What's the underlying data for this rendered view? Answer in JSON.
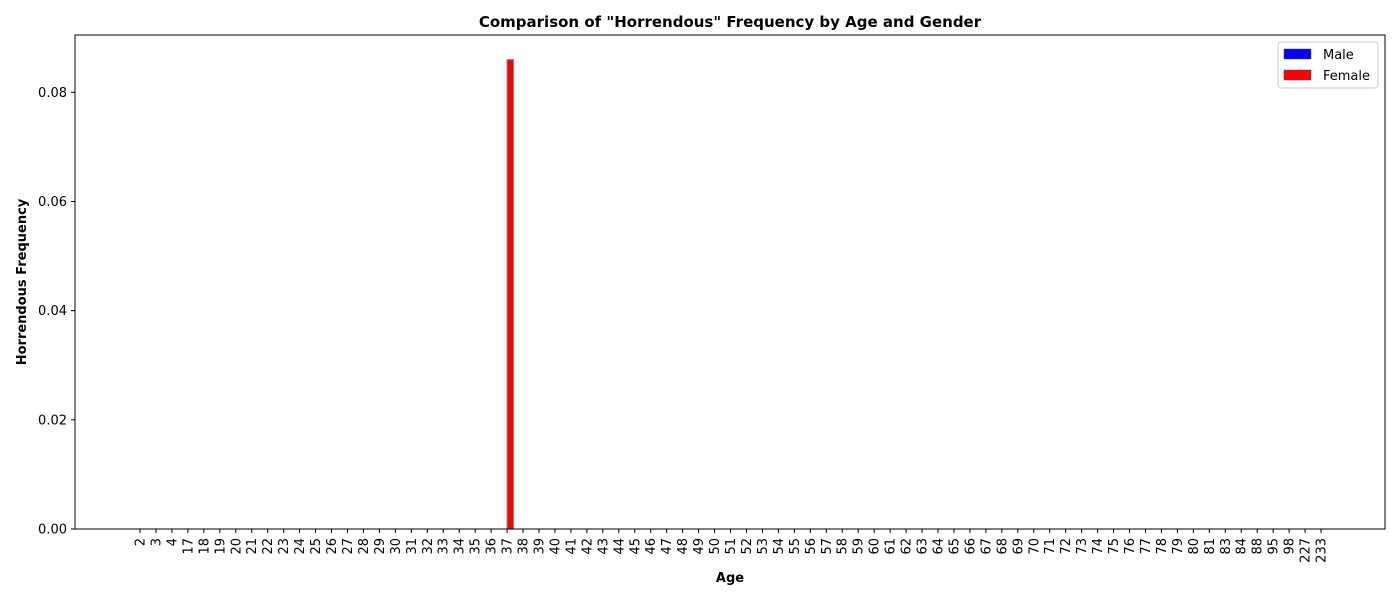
{
  "chart_data": {
    "type": "bar",
    "title": "Comparison of \"Horrendous\" Frequency by Age and Gender",
    "xlabel": "Age",
    "ylabel": "Horrendous Frequency",
    "ylim": [
      0,
      0.0905
    ],
    "yticks": [
      0.0,
      0.02,
      0.04,
      0.06,
      0.08
    ],
    "ytick_labels": [
      "0.00",
      "0.02",
      "0.04",
      "0.06",
      "0.08"
    ],
    "grid": false,
    "legend_position": "top-right",
    "categories": [
      "2",
      "3",
      "4",
      "17",
      "18",
      "19",
      "20",
      "21",
      "22",
      "23",
      "24",
      "25",
      "26",
      "27",
      "28",
      "29",
      "30",
      "31",
      "32",
      "33",
      "34",
      "35",
      "36",
      "37",
      "38",
      "39",
      "40",
      "41",
      "42",
      "43",
      "44",
      "45",
      "46",
      "47",
      "48",
      "49",
      "50",
      "51",
      "52",
      "53",
      "54",
      "55",
      "56",
      "57",
      "58",
      "59",
      "60",
      "61",
      "62",
      "63",
      "64",
      "65",
      "66",
      "67",
      "68",
      "69",
      "70",
      "71",
      "72",
      "73",
      "74",
      "75",
      "76",
      "77",
      "78",
      "79",
      "80",
      "81",
      "83",
      "84",
      "88",
      "95",
      "98",
      "227",
      "233"
    ],
    "series": [
      {
        "name": "Male",
        "color": "#0000ff",
        "values": [
          0,
          0,
          0,
          0,
          0,
          0,
          0,
          0,
          0,
          0,
          0,
          0,
          0,
          0,
          0,
          0,
          0,
          0,
          0,
          0,
          0,
          0,
          0,
          0,
          0,
          0,
          0,
          0,
          0,
          0,
          0,
          0,
          0,
          0,
          0,
          0,
          0,
          0,
          0,
          0,
          0,
          0,
          0,
          0,
          0,
          0,
          0,
          0,
          0,
          0,
          0,
          0,
          0,
          0,
          0,
          0,
          0,
          0,
          0,
          0,
          0,
          0,
          0,
          0,
          0,
          0,
          0,
          0,
          0,
          0,
          0,
          0,
          0,
          0,
          0
        ]
      },
      {
        "name": "Female",
        "color": "#ff0000",
        "values": [
          0,
          0,
          0,
          0,
          0,
          0,
          0,
          0,
          0,
          0,
          0,
          0,
          0,
          0,
          0,
          0,
          0,
          0,
          0,
          0,
          0,
          0,
          0,
          0.086,
          0,
          0,
          0,
          0,
          0,
          0,
          0,
          0,
          0,
          0,
          0,
          0,
          0,
          0,
          0,
          0,
          0,
          0,
          0,
          0,
          0,
          0,
          0,
          0,
          0,
          0,
          0,
          0,
          0,
          0,
          0,
          0,
          0,
          0,
          0,
          0,
          0,
          0,
          0,
          0,
          0,
          0,
          0,
          0,
          0,
          0,
          0,
          0,
          0,
          0,
          0
        ]
      }
    ]
  }
}
